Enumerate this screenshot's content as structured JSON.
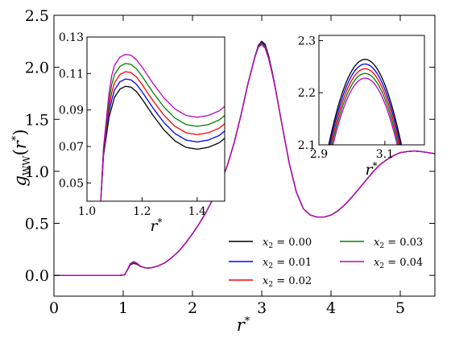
{
  "chart_data": {
    "type": "line",
    "xlabel": "r*",
    "ylabel": "g_WW(r*)",
    "xlim": [
      0,
      5.5
    ],
    "ylim": [
      -0.2,
      2.5
    ],
    "xticks": [
      "0",
      "1",
      "2",
      "3",
      "4",
      "5"
    ],
    "yticks": [
      "0.0",
      "0.5",
      "1.0",
      "1.5",
      "2.0",
      "2.5"
    ],
    "legend_position": "lower-right",
    "series": [
      {
        "name": "x2 = 0.00",
        "label_sub": "2",
        "label_val": " = 0.00",
        "color": "#000000",
        "peak_offset": 0.0,
        "inset_a_offset": 0.0
      },
      {
        "name": "x2 = 0.01",
        "label_sub": "2",
        "label_val": " = 0.01",
        "color": "#0000ff",
        "peak_offset": -0.009,
        "inset_a_offset": 0.004
      },
      {
        "name": "x2 = 0.02",
        "label_sub": "2",
        "label_val": " = 0.02",
        "color": "#ff0000",
        "peak_offset": -0.018,
        "inset_a_offset": 0.008
      },
      {
        "name": "x2 = 0.03",
        "label_sub": "2",
        "label_val": " = 0.03",
        "color": "#008000",
        "peak_offset": -0.027,
        "inset_a_offset": 0.0125
      },
      {
        "name": "x2 = 0.04",
        "label_sub": "2",
        "label_val": " = 0.04",
        "color": "#bf00bf",
        "peak_offset": -0.036,
        "inset_a_offset": 0.0175
      }
    ],
    "main_curve": {
      "x": [
        0,
        0.95,
        1.02,
        1.06,
        1.1,
        1.15,
        1.2,
        1.25,
        1.3,
        1.35,
        1.4,
        1.45,
        1.5,
        1.6,
        1.7,
        1.8,
        1.9,
        2.0,
        2.1,
        2.2,
        2.3,
        2.4,
        2.5,
        2.6,
        2.7,
        2.8,
        2.9,
        2.95,
        3.0,
        3.05,
        3.1,
        3.15,
        3.2,
        3.3,
        3.4,
        3.5,
        3.6,
        3.7,
        3.8,
        3.9,
        4.0,
        4.1,
        4.2,
        4.3,
        4.4,
        4.5,
        4.6,
        4.7,
        4.8,
        4.9,
        5.0,
        5.1,
        5.2,
        5.3,
        5.4,
        5.5
      ],
      "y": [
        0,
        0,
        0.005,
        0.05,
        0.1,
        0.115,
        0.105,
        0.085,
        0.075,
        0.07,
        0.072,
        0.08,
        0.09,
        0.12,
        0.17,
        0.23,
        0.31,
        0.4,
        0.5,
        0.61,
        0.74,
        0.88,
        1.05,
        1.27,
        1.54,
        1.84,
        2.1,
        2.21,
        2.25,
        2.22,
        2.11,
        1.96,
        1.79,
        1.42,
        1.07,
        0.8,
        0.64,
        0.58,
        0.56,
        0.56,
        0.58,
        0.62,
        0.68,
        0.75,
        0.83,
        0.91,
        0.99,
        1.06,
        1.11,
        1.15,
        1.18,
        1.19,
        1.195,
        1.19,
        1.18,
        1.17
      ]
    },
    "inset_left": {
      "xlim": [
        1.0,
        1.5
      ],
      "ylim": [
        0.04,
        0.13
      ],
      "xticks": [
        "1.0",
        "1.2",
        "1.4"
      ],
      "yticks": [
        "0.05",
        "0.07",
        "0.09",
        "0.11",
        "0.13"
      ],
      "xlabel": "r*",
      "base_x": [
        1.05,
        1.06,
        1.08,
        1.1,
        1.12,
        1.14,
        1.16,
        1.18,
        1.2,
        1.24,
        1.28,
        1.32,
        1.36,
        1.4,
        1.44,
        1.48,
        1.5
      ],
      "base_y": [
        0.04,
        0.065,
        0.086,
        0.097,
        0.1015,
        0.103,
        0.1025,
        0.1,
        0.096,
        0.087,
        0.079,
        0.073,
        0.0695,
        0.0685,
        0.0695,
        0.072,
        0.0745
      ]
    },
    "inset_right": {
      "xlim": [
        2.9,
        3.22
      ],
      "ylim": [
        2.1,
        2.31
      ],
      "xticks": [
        "2.9",
        "3.1"
      ],
      "yticks": [
        "2.1",
        "2.2",
        "2.3"
      ],
      "xlabel": "r*",
      "peak_x": 3.04,
      "peak_y": 2.264,
      "curvature": 13.5
    }
  }
}
